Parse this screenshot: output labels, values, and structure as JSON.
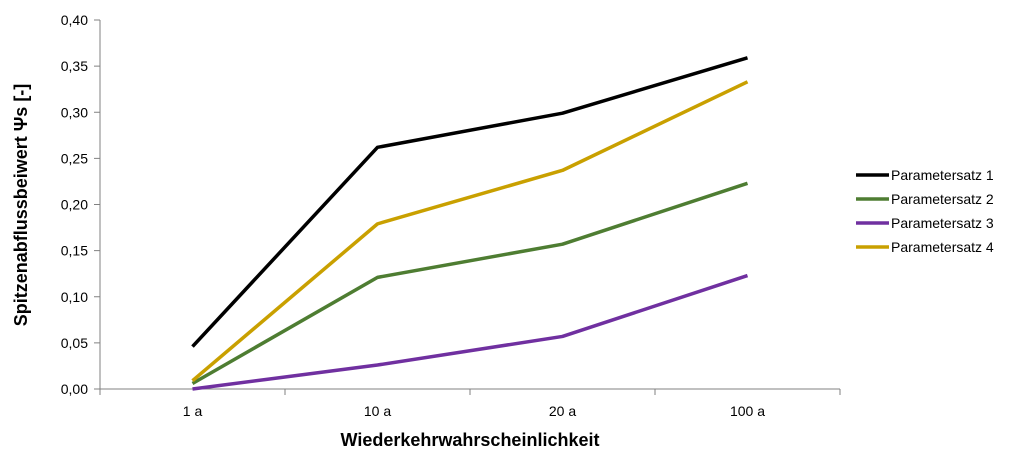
{
  "chart_data": {
    "type": "line",
    "title": "",
    "xlabel": "Wiederkehrwahrscheinlichkeit",
    "ylabel": "Spitzenabflussbeiwert Ψs [-]",
    "categories": [
      "1 a",
      "10 a",
      "20 a",
      "100 a"
    ],
    "ylim": [
      0,
      0.4
    ],
    "yticks": [
      0.0,
      0.05,
      0.1,
      0.15,
      0.2,
      0.25,
      0.3,
      0.35,
      0.4
    ],
    "ytick_labels": [
      "0,00",
      "0,05",
      "0,10",
      "0,15",
      "0,20",
      "0,25",
      "0,30",
      "0,35",
      "0,40"
    ],
    "grid": false,
    "legend_position": "right",
    "series": [
      {
        "name": "Parametersatz 1",
        "color": "#000000",
        "values": [
          0.046,
          0.262,
          0.299,
          0.359
        ]
      },
      {
        "name": "Parametersatz 2",
        "color": "#4e7d32",
        "values": [
          0.006,
          0.121,
          0.157,
          0.223
        ]
      },
      {
        "name": "Parametersatz 3",
        "color": "#7030a0",
        "values": [
          0.0,
          0.026,
          0.057,
          0.123
        ]
      },
      {
        "name": "Parametersatz 4",
        "color": "#c9a000",
        "values": [
          0.009,
          0.179,
          0.237,
          0.333
        ]
      }
    ]
  }
}
